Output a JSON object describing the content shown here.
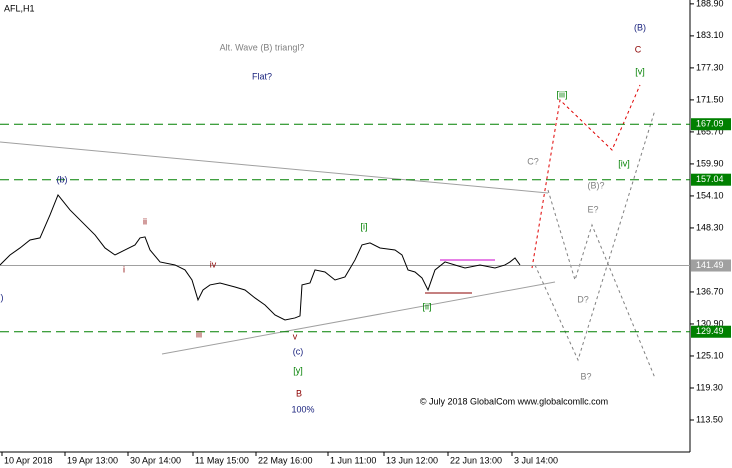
{
  "chart_data": {
    "type": "line",
    "title": "AFL,H1",
    "x": [
      0,
      10,
      20,
      30,
      40,
      50,
      58,
      62,
      70,
      80,
      95,
      105,
      115,
      125,
      135,
      140,
      145,
      150,
      160,
      175,
      185,
      192,
      198,
      203,
      210,
      220,
      235,
      245,
      255,
      265,
      275,
      285,
      295,
      300,
      302,
      310,
      315,
      325,
      335,
      345,
      355,
      362,
      370,
      380,
      395,
      402,
      408,
      415,
      422,
      428,
      435,
      445,
      455,
      465,
      480,
      495,
      505,
      510,
      515,
      520
    ],
    "series": [
      {
        "color": "#000000",
        "values": [
          141.59,
          143.4,
          144.67,
          146.12,
          146.49,
          150.65,
          154.28,
          153.37,
          151.56,
          149.75,
          147.03,
          144.67,
          143.4,
          144.31,
          145.22,
          146.49,
          146.67,
          144.31,
          142.14,
          141.59,
          140.69,
          138.87,
          135.25,
          137.06,
          137.97,
          138.33,
          137.6,
          137.06,
          135.61,
          134.34,
          132.53,
          131.62,
          131.99,
          132.35,
          137.97,
          138.33,
          140.69,
          140.32,
          138.87,
          139.42,
          142.5,
          145.22,
          145.58,
          144.67,
          144.31,
          143.4,
          140.69,
          140.32,
          139.24,
          137.06,
          140.69,
          142.14,
          141.59,
          141.05,
          141.59,
          141.05,
          141.59,
          142.14,
          142.86,
          141.59
        ]
      }
    ],
    "xlim": [
      0,
      690
    ],
    "ylim": [
      107.7,
      189.6
    ],
    "xticks": [
      {
        "value": 2,
        "label": "10 Apr 2018"
      },
      {
        "value": 65,
        "label": "19 Apr 13:00"
      },
      {
        "value": 128,
        "label": "30 Apr 14:00"
      },
      {
        "value": 193,
        "label": "11 May 15:00"
      },
      {
        "value": 256,
        "label": "22 May 16:00"
      },
      {
        "value": 328,
        "label": "1 Jun 11:00"
      },
      {
        "value": 384,
        "label": "13 Jun 12:00"
      },
      {
        "value": 448,
        "label": "22 Jun 13:00"
      },
      {
        "value": 512,
        "label": "3 Jul 14:00"
      }
    ],
    "yticks": [
      {
        "value": 188.9,
        "label": "188.90"
      },
      {
        "value": 183.1,
        "label": "183.10"
      },
      {
        "value": 177.3,
        "label": "177.30"
      },
      {
        "value": 171.5,
        "label": "171.50"
      },
      {
        "value": 165.7,
        "label": "165.70"
      },
      {
        "value": 159.9,
        "label": "159.90"
      },
      {
        "value": 154.1,
        "label": "154.10"
      },
      {
        "value": 148.3,
        "label": "148.30"
      },
      {
        "value": 136.7,
        "label": "136.70"
      },
      {
        "value": 130.9,
        "label": "130.90"
      },
      {
        "value": 125.1,
        "label": "125.10"
      },
      {
        "value": 119.3,
        "label": "119.30"
      },
      {
        "value": 113.5,
        "label": "113.50"
      }
    ],
    "levels": [
      {
        "value": 167.09,
        "color": "#008000"
      },
      {
        "value": 157.04,
        "color": "#008000"
      },
      {
        "value": 141.49,
        "color": "#a0a0a0"
      },
      {
        "value": 129.49,
        "color": "#008000"
      }
    ],
    "annotations": [
      {
        "text": "Alt. Wave (B) triangl?",
        "color": "#808080"
      },
      {
        "text": "Flat?",
        "color": "#1a237e"
      },
      {
        "text": "(B)",
        "color": "#1a237e"
      },
      {
        "text": "C",
        "color": "#8b0000"
      },
      {
        "text": "[v]",
        "color": "#008000"
      },
      {
        "text": "[iii]",
        "color": "#008000"
      },
      {
        "text": "C?",
        "color": "#808080"
      },
      {
        "text": "[iv]",
        "color": "#008000"
      },
      {
        "text": "(B)?",
        "color": "#808080"
      },
      {
        "text": "E?",
        "color": "#808080"
      },
      {
        "text": "D?",
        "color": "#808080"
      },
      {
        "text": "B?",
        "color": "#808080"
      },
      {
        "text": "(b)",
        "color": "#1a237e"
      },
      {
        "text": "ii",
        "color": "#8b0000"
      },
      {
        "text": "i",
        "color": "#8b0000"
      },
      {
        "text": "iv",
        "color": "#8b0000"
      },
      {
        "text": "iii",
        "color": "#8b0000"
      },
      {
        "text": "v",
        "color": "#8b0000"
      },
      {
        "text": "(c)",
        "color": "#1a237e"
      },
      {
        "text": "[y]",
        "color": "#008000"
      },
      {
        "text": "B",
        "color": "#8b0000"
      },
      {
        "text": "100%",
        "color": "#1a237e"
      },
      {
        "text": "[i]",
        "color": "#008000"
      },
      {
        "text": "[ii]",
        "color": "#008000"
      },
      {
        "text": ")",
        "color": "#1a237e"
      },
      {
        "text": "© July 2018 GlobalCom www.globalcomllc.com",
        "color": "#000000"
      }
    ]
  }
}
